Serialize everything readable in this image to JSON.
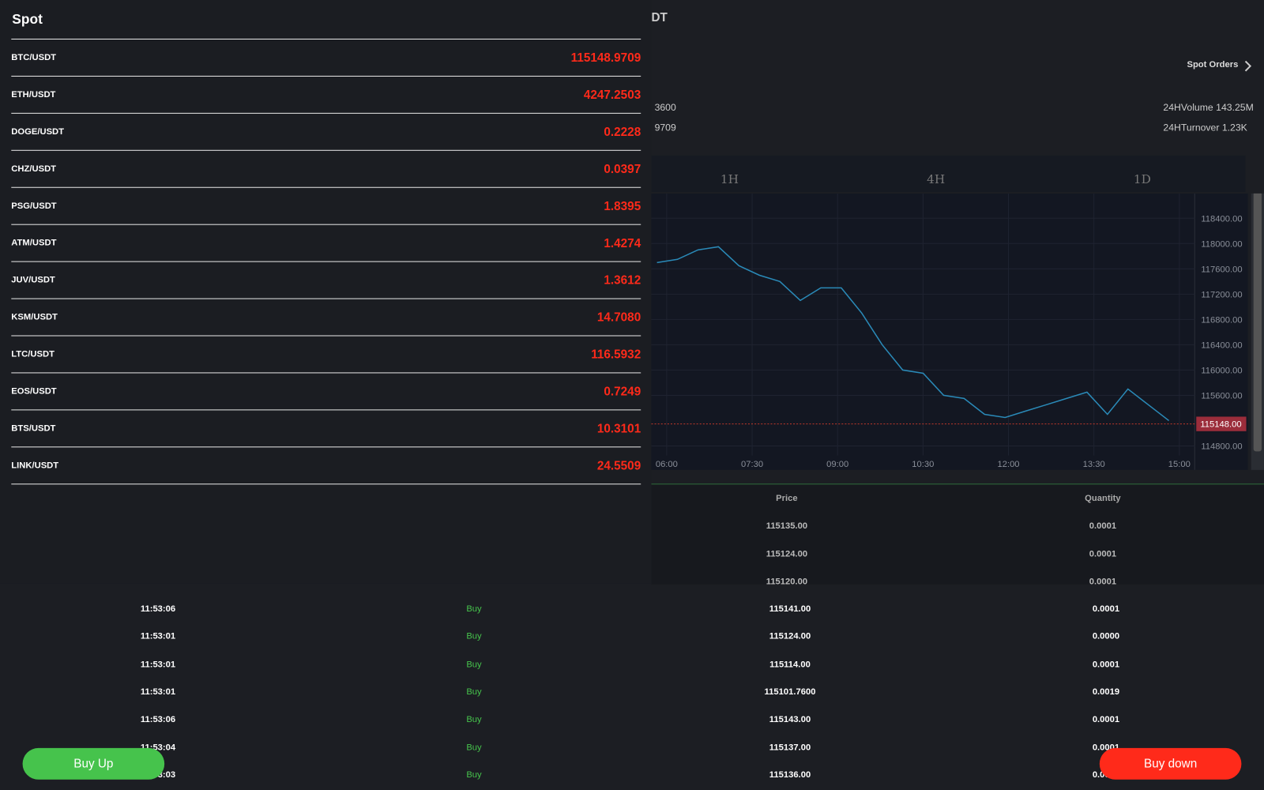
{
  "header": {
    "pair_fragment": "DT",
    "spot_orders": "Spot Orders",
    "stat_left_1": "3600",
    "stat_left_2": "9709",
    "volume": "24HVolume 143.25M",
    "turnover": "24HTurnover 1.23K"
  },
  "timeframes": [
    "1H",
    "4H",
    "1D"
  ],
  "kline": {
    "ylim": [
      114420,
      118690
    ],
    "yticks": [
      {
        "value": 114800,
        "label": "114800.00"
      },
      {
        "value": 115600,
        "label": "115600.00"
      },
      {
        "value": 116000,
        "label": "116000.00"
      },
      {
        "value": 116400,
        "label": "116400.00"
      },
      {
        "value": 116800,
        "label": "116800.00"
      },
      {
        "value": 117200,
        "label": "117200.00"
      },
      {
        "value": 117600,
        "label": "117600.00"
      },
      {
        "value": 118000,
        "label": "118000.00"
      },
      {
        "value": 118400,
        "label": "118400.00"
      }
    ],
    "xticks": [
      "06:00",
      "07:30",
      "09:00",
      "10:30",
      "12:00",
      "13:30",
      "15:00"
    ],
    "closes": [
      117700,
      117750,
      117900,
      117950,
      117650,
      117500,
      117400,
      117100,
      117300,
      117300,
      116900,
      116400,
      116000,
      115950,
      115600,
      115550,
      115300,
      115250,
      115350,
      115450,
      115550,
      115650,
      115300,
      115700,
      115450,
      115200
    ],
    "last_price": {
      "value": 115148,
      "label": "115148.00"
    }
  },
  "trades": {
    "columns": [
      "Price",
      "Quantity"
    ],
    "rows": [
      {
        "price": "115135.00",
        "quantity": "0.0001"
      },
      {
        "price": "115124.00",
        "quantity": "0.0001"
      },
      {
        "price": "115120.00",
        "quantity": "0.0001"
      },
      {
        "time": "11:53:06",
        "side": "Buy",
        "price": "115141.00",
        "quantity": "0.0001"
      },
      {
        "time": "11:53:01",
        "side": "Buy",
        "price": "115124.00",
        "quantity": "0.0000"
      },
      {
        "time": "11:53:01",
        "side": "Buy",
        "price": "115114.00",
        "quantity": "0.0001"
      },
      {
        "time": "11:53:01",
        "side": "Buy",
        "price": "115101.7600",
        "quantity": "0.0019"
      },
      {
        "time": "11:53:06",
        "side": "Buy",
        "price": "115143.00",
        "quantity": "0.0001"
      },
      {
        "time": "11:53:04",
        "side": "Buy",
        "price": "115137.00",
        "quantity": "0.0001"
      },
      {
        "time": "11:53:03",
        "side": "Buy",
        "price": "115136.00",
        "quantity": "0.0001"
      }
    ]
  },
  "spot_panel": {
    "title": "Spot",
    "pairs": [
      {
        "symbol": "BTC/USDT",
        "price": "115148.9709"
      },
      {
        "symbol": "ETH/USDT",
        "price": "4247.2503"
      },
      {
        "symbol": "DOGE/USDT",
        "price": "0.2228"
      },
      {
        "symbol": "CHZ/USDT",
        "price": "0.0397"
      },
      {
        "symbol": "PSG/USDT",
        "price": "1.8395"
      },
      {
        "symbol": "ATM/USDT",
        "price": "1.4274"
      },
      {
        "symbol": "JUV/USDT",
        "price": "1.3612"
      },
      {
        "symbol": "KSM/USDT",
        "price": "14.7080"
      },
      {
        "symbol": "LTC/USDT",
        "price": "116.5932"
      },
      {
        "symbol": "EOS/USDT",
        "price": "0.7249"
      },
      {
        "symbol": "BTS/USDT",
        "price": "10.3101"
      },
      {
        "symbol": "LINK/USDT",
        "price": "24.5509"
      }
    ]
  },
  "buttons": {
    "buy_up": "Buy Up",
    "buy_down": "Buy down"
  }
}
